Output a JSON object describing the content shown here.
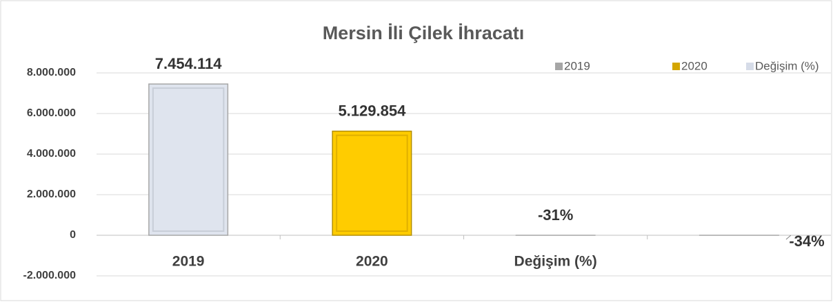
{
  "chart_data": {
    "type": "bar",
    "title": "Mersin İli Çilek İhracatı",
    "categories": [
      "2019",
      "2020",
      "Değişim (%)",
      null
    ],
    "values": [
      7454114,
      5129854,
      -31,
      -34
    ],
    "value_labels": [
      "7.454.114",
      "5.129.854",
      "-31%",
      "-34%"
    ],
    "colors": [
      "#dfe4ee",
      "#ffcc00",
      "#dfe4ee",
      "#dfe4ee"
    ],
    "legend": [
      {
        "name": "2019",
        "color": "#a6a6a6"
      },
      {
        "name": "2020",
        "color": "#d4a600"
      },
      {
        "name": "Değişim (%)",
        "color": "#d6dce8"
      }
    ],
    "ylim": [
      -2000000,
      8000000
    ],
    "yticks": [
      {
        "value": -2000000,
        "label": "-2.000.000"
      },
      0,
      {
        "value": 2000000,
        "label": "2.000.000"
      },
      {
        "value": 4000000,
        "label": "4.000.000"
      },
      {
        "value": 6000000,
        "label": "6.000.000"
      },
      {
        "value": 8000000,
        "label": "8.000.000"
      }
    ],
    "grid": true
  }
}
